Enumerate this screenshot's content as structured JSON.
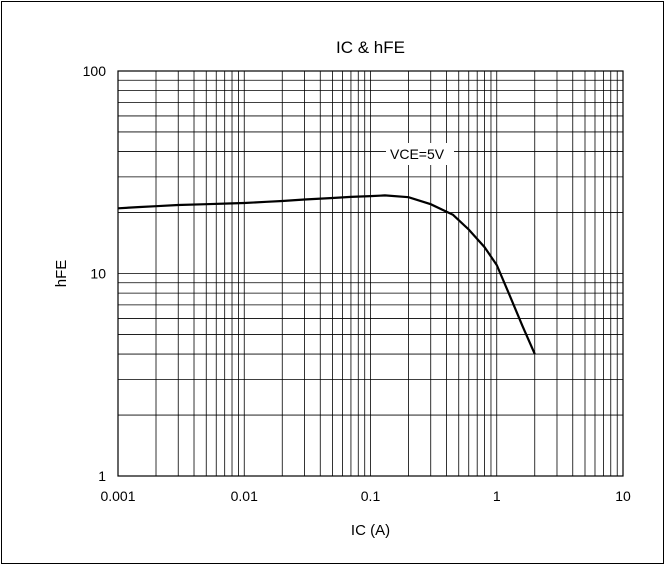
{
  "chart_data": {
    "type": "line",
    "title": "IC & hFE",
    "xlabel": "IC (A)",
    "ylabel": "hFE",
    "x_scale": "log",
    "y_scale": "log",
    "xlim": [
      0.001,
      10
    ],
    "ylim": [
      1,
      100
    ],
    "x_ticks": [
      "0.001",
      "0.01",
      "0.1",
      "1",
      "10"
    ],
    "y_ticks": [
      "1",
      "10",
      "100"
    ],
    "grid": true,
    "annotation": "VCE=5V",
    "series": [
      {
        "x": [
          0.001,
          0.0015,
          0.002,
          0.003,
          0.005,
          0.008,
          0.01,
          0.015,
          0.02,
          0.03,
          0.05,
          0.07,
          0.1,
          0.13,
          0.2,
          0.3,
          0.45,
          0.6,
          0.8,
          1.0,
          1.3,
          1.6,
          2.0
        ],
        "values": [
          21,
          21.3,
          21.5,
          21.8,
          22,
          22.2,
          22.3,
          22.6,
          22.8,
          23.2,
          23.6,
          23.9,
          24.1,
          24.3,
          23.8,
          22.0,
          19.5,
          16.5,
          13.5,
          11.0,
          7.5,
          5.5,
          4.0
        ]
      }
    ]
  }
}
